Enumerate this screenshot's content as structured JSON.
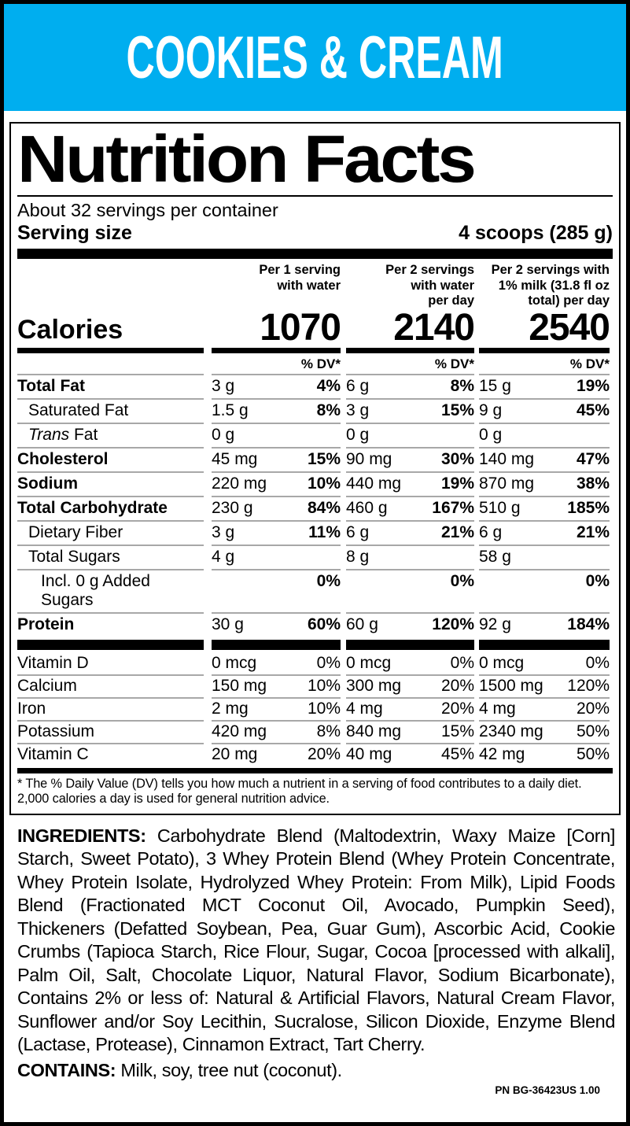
{
  "banner": {
    "title": "COOKIES & CREAM",
    "bg_color": "#00AEEF"
  },
  "panel": {
    "title": "Nutrition Facts",
    "servings_per_container": "About 32 servings per container",
    "serving_size_label": "Serving size",
    "serving_size_value": "4 scoops (285 g)",
    "calories_label": "Calories",
    "dv_header": "% DV*",
    "columns": [
      {
        "header_lines": [
          "Per 1 serving",
          "with water"
        ],
        "calories": "1070"
      },
      {
        "header_lines": [
          "Per 2 servings",
          "with water",
          "per day"
        ],
        "calories": "2140"
      },
      {
        "header_lines": [
          "Per 2 servings with",
          "1% milk (31.8 fl oz",
          "total) per day"
        ],
        "calories": "2540"
      }
    ],
    "rows": [
      {
        "label": "Total Fat",
        "bold": true,
        "indent": 0,
        "amounts": [
          "3 g",
          "6 g",
          "15 g"
        ],
        "dvs": [
          "4%",
          "8%",
          "19%"
        ],
        "dv_bold": true
      },
      {
        "label": "Saturated Fat",
        "bold": false,
        "indent": 1,
        "amounts": [
          "1.5 g",
          "3 g",
          "9 g"
        ],
        "dvs": [
          "8%",
          "15%",
          "45%"
        ],
        "dv_bold": true
      },
      {
        "label": "Trans Fat",
        "italic_prefix": "Trans",
        "bold": false,
        "indent": 1,
        "amounts": [
          "0 g",
          "0 g",
          "0 g"
        ],
        "dvs": [
          "",
          "",
          ""
        ],
        "dv_bold": true
      },
      {
        "label": "Cholesterol",
        "bold": true,
        "indent": 0,
        "amounts": [
          "45 mg",
          "90 mg",
          "140 mg"
        ],
        "dvs": [
          "15%",
          "30%",
          "47%"
        ],
        "dv_bold": true
      },
      {
        "label": "Sodium",
        "bold": true,
        "indent": 0,
        "amounts": [
          "220 mg",
          "440 mg",
          "870 mg"
        ],
        "dvs": [
          "10%",
          "19%",
          "38%"
        ],
        "dv_bold": true
      },
      {
        "label": "Total Carbohydrate",
        "bold": true,
        "indent": 0,
        "amounts": [
          "230 g",
          "460 g",
          "510 g"
        ],
        "dvs": [
          "84%",
          "167%",
          "185%"
        ],
        "dv_bold": true
      },
      {
        "label": "Dietary Fiber",
        "bold": false,
        "indent": 1,
        "amounts": [
          "3 g",
          "6 g",
          "6 g"
        ],
        "dvs": [
          "11%",
          "21%",
          "21%"
        ],
        "dv_bold": true
      },
      {
        "label": "Total Sugars",
        "bold": false,
        "indent": 1,
        "amounts": [
          "4 g",
          "8 g",
          "58 g"
        ],
        "dvs": [
          "",
          "",
          ""
        ],
        "dv_bold": true
      },
      {
        "label": "Incl. 0 g Added Sugars",
        "bold": false,
        "indent": 2,
        "amounts": [
          "",
          "",
          ""
        ],
        "dvs": [
          "0%",
          "0%",
          "0%"
        ],
        "dv_bold": true
      },
      {
        "label": "Protein",
        "bold": true,
        "indent": 0,
        "amounts": [
          "30 g",
          "60 g",
          "92 g"
        ],
        "dvs": [
          "60%",
          "120%",
          "184%"
        ],
        "dv_bold": true
      }
    ],
    "micro_rows": [
      {
        "label": "Vitamin D",
        "bold": false,
        "indent": 0,
        "amounts": [
          "0 mcg",
          "0 mcg",
          "0 mcg"
        ],
        "dvs": [
          "0%",
          "0%",
          "0%"
        ],
        "dv_bold": false
      },
      {
        "label": "Calcium",
        "bold": false,
        "indent": 0,
        "amounts": [
          "150 mg",
          "300 mg",
          "1500 mg"
        ],
        "dvs": [
          "10%",
          "20%",
          "120%"
        ],
        "dv_bold": false
      },
      {
        "label": "Iron",
        "bold": false,
        "indent": 0,
        "amounts": [
          "2 mg",
          "4 mg",
          "4 mg"
        ],
        "dvs": [
          "10%",
          "20%",
          "20%"
        ],
        "dv_bold": false
      },
      {
        "label": "Potassium",
        "bold": false,
        "indent": 0,
        "amounts": [
          "420 mg",
          "840 mg",
          "2340 mg"
        ],
        "dvs": [
          "8%",
          "15%",
          "50%"
        ],
        "dv_bold": false
      },
      {
        "label": "Vitamin C",
        "bold": false,
        "indent": 0,
        "amounts": [
          "20 mg",
          "40 mg",
          "42 mg"
        ],
        "dvs": [
          "20%",
          "45%",
          "50%"
        ],
        "dv_bold": false
      }
    ],
    "footnote": "* The % Daily Value (DV) tells you how much a nutrient in a serving of food contributes to a daily diet. 2,000 calories a day is used for general nutrition advice."
  },
  "ingredients": {
    "label": "INGREDIENTS:",
    "text": "Carbohydrate Blend (Maltodextrin, Waxy Maize [Corn] Starch, Sweet Potato), 3 Whey Protein Blend (Whey Protein Concentrate, Whey Protein Isolate, Hydrolyzed Whey Protein: From Milk), Lipid Foods Blend (Fractionated MCT Coconut Oil, Avocado, Pumpkin Seed), Thickeners (Defatted Soybean, Pea, Guar Gum), Ascorbic Acid, Cookie Crumbs (Tapioca Starch, Rice Flour, Sugar, Cocoa [processed with alkali], Palm Oil, Salt, Chocolate Liquor, Natural Flavor, Sodium Bicarbonate), Contains 2% or less of: Natural & Artificial Flavors, Natural Cream Flavor, Sunflower and/or Soy Lecithin, Sucralose, Silicon Dioxide, Enzyme Blend (Lactase, Protease), Cinnamon Extract, Tart Cherry."
  },
  "contains": {
    "label": "CONTAINS:",
    "text": "Milk, soy, tree nut (coconut)."
  },
  "part_number": "PN BG-36423US 1.00"
}
